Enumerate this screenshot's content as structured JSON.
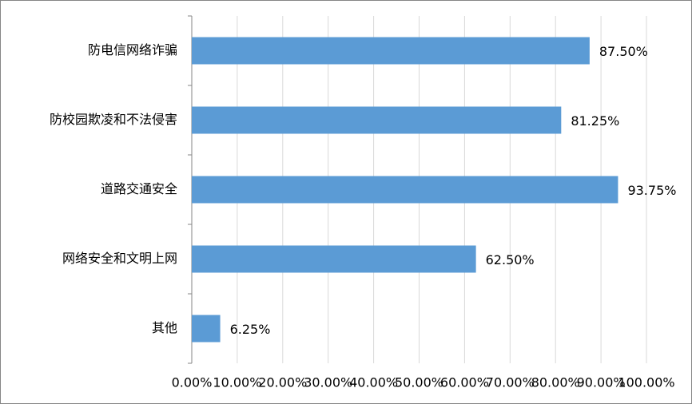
{
  "chart_data": {
    "type": "bar",
    "orientation": "horizontal",
    "categories": [
      "防电信网络诈骗",
      "防校园欺凌和不法侵害",
      "道路交通安全",
      "网络安全和文明上网",
      "其他"
    ],
    "values": [
      87.5,
      81.25,
      93.75,
      62.5,
      6.25
    ],
    "value_labels": [
      "87.50%",
      "81.25%",
      "93.75%",
      "62.50%",
      "6.25%"
    ],
    "color": "#5b9bd5",
    "xlim": [
      0,
      100
    ],
    "xticks": [
      {
        "value": 0,
        "label": "0.00%"
      },
      {
        "value": 10,
        "label": "10.00%"
      },
      {
        "value": 20,
        "label": "20.00%"
      },
      {
        "value": 30,
        "label": "30.00%"
      },
      {
        "value": 40,
        "label": "40.00%"
      },
      {
        "value": 50,
        "label": "50.00%"
      },
      {
        "value": 60,
        "label": "60.00%"
      },
      {
        "value": 70,
        "label": "70.00%"
      },
      {
        "value": 80,
        "label": "80.00%"
      },
      {
        "value": 90,
        "label": "90.00%"
      },
      {
        "value": 100,
        "label": "100.00%"
      }
    ],
    "grid": true
  }
}
